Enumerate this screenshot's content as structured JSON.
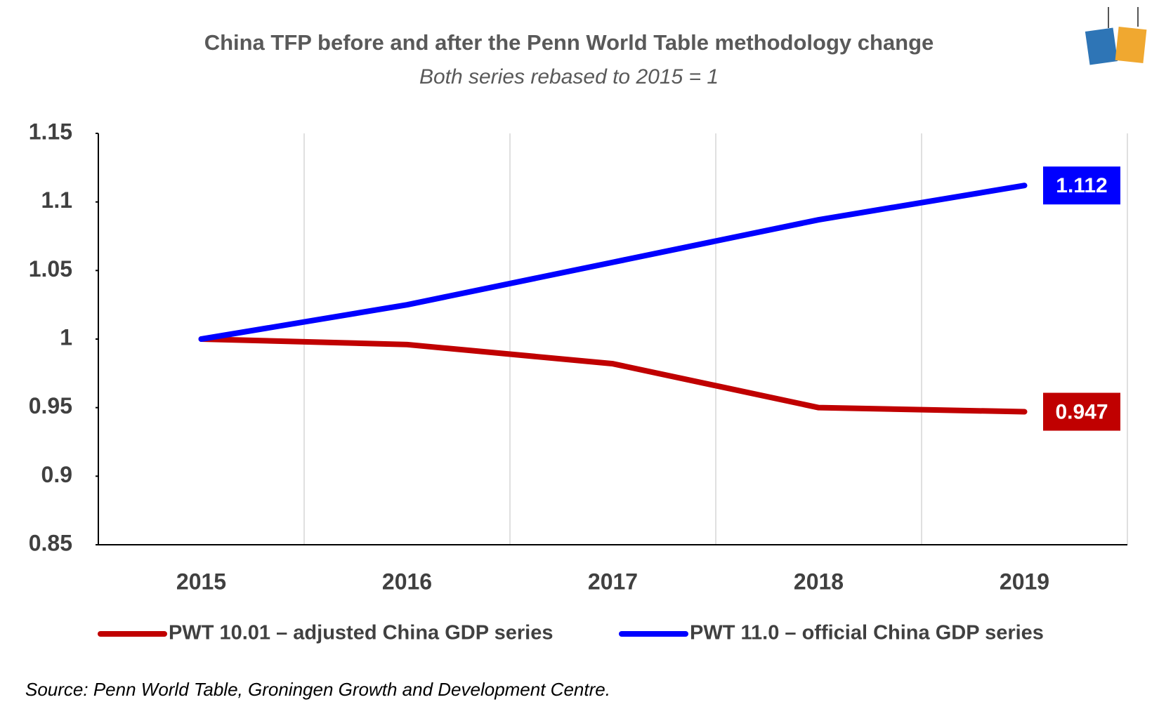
{
  "chart_data": {
    "type": "line",
    "title": "China TFP before and after the Penn World Table methodology change",
    "subtitle": "Both series rebased to 2015 = 1",
    "source": "Source:  Penn World Table, Groningen Growth and Development Centre.",
    "categories": [
      "2015",
      "2016",
      "2017",
      "2018",
      "2019"
    ],
    "series": [
      {
        "name": "PWT 10.01 – adjusted China GDP series",
        "color": "#c00000",
        "values": [
          1,
          0.996,
          0.982,
          0.95,
          0.947
        ]
      },
      {
        "name": "PWT 11.0 – official China GDP series",
        "color": "#0000ff",
        "values": [
          1,
          1.025,
          1.056,
          1.087,
          1.112
        ]
      }
    ],
    "ylim": [
      0.85,
      1.15
    ],
    "yticks": [
      0.85,
      0.9,
      0.95,
      1,
      1.05,
      1.1,
      1.15
    ],
    "grid": true,
    "end_labels": true,
    "legend": "bottom"
  }
}
